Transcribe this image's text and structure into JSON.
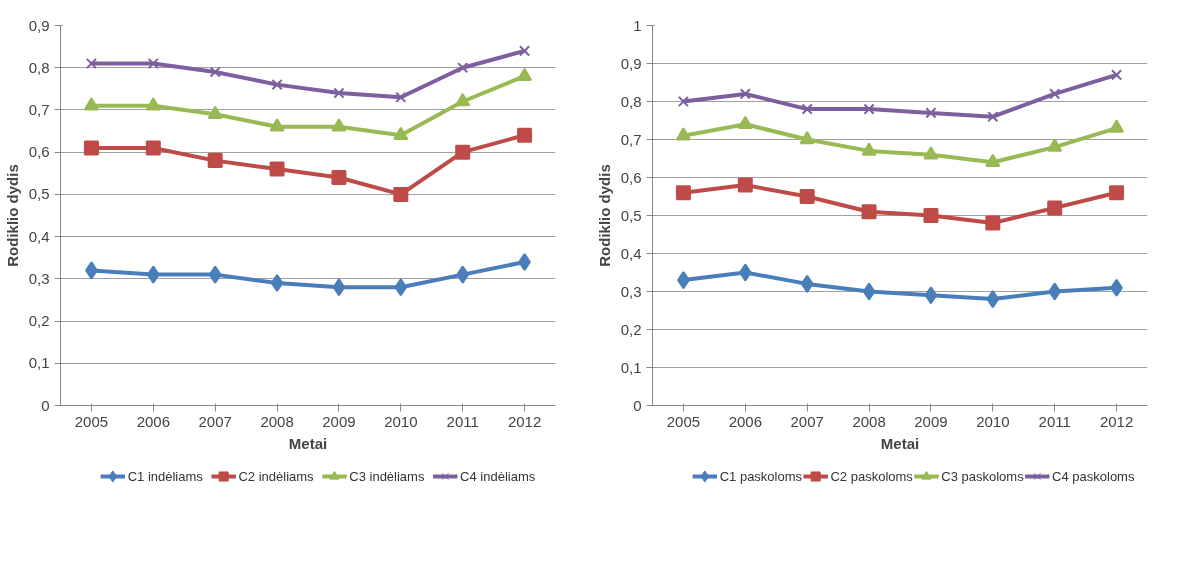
{
  "chart_data": [
    {
      "type": "line",
      "xlabel": "Metai",
      "ylabel": "Rodiklio dydis",
      "categories": [
        "2005",
        "2006",
        "2007",
        "2008",
        "2009",
        "2010",
        "2011",
        "2012"
      ],
      "ylim": [
        0,
        0.9
      ],
      "yticks": [
        {
          "value": 0,
          "label": "0"
        },
        {
          "value": 0.1,
          "label": "0,1"
        },
        {
          "value": 0.2,
          "label": "0,2"
        },
        {
          "value": 0.3,
          "label": "0,3"
        },
        {
          "value": 0.4,
          "label": "0,4"
        },
        {
          "value": 0.5,
          "label": "0,5"
        },
        {
          "value": 0.6,
          "label": "0,6"
        },
        {
          "value": 0.7,
          "label": "0,7"
        },
        {
          "value": 0.8,
          "label": "0,8"
        },
        {
          "value": 0.9,
          "label": "0,9"
        }
      ],
      "grid": "y",
      "legend": "bottom",
      "line_style": "solid",
      "series": [
        {
          "name": "C1 indėliams",
          "color": "#4a7ebb",
          "marker": "diamond",
          "values": [
            0.32,
            0.31,
            0.31,
            0.29,
            0.28,
            0.28,
            0.31,
            0.34
          ]
        },
        {
          "name": "C2 indėliams",
          "color": "#be4b48",
          "marker": "square",
          "values": [
            0.61,
            0.61,
            0.58,
            0.56,
            0.54,
            0.5,
            0.6,
            0.64
          ]
        },
        {
          "name": "C3 indėliams",
          "color": "#98b954",
          "marker": "triangle",
          "values": [
            0.71,
            0.71,
            0.69,
            0.66,
            0.66,
            0.64,
            0.72,
            0.78
          ]
        },
        {
          "name": "C4 indėliams",
          "color": "#7d5fa0",
          "marker": "cross",
          "values": [
            0.81,
            0.81,
            0.79,
            0.76,
            0.74,
            0.73,
            0.8,
            0.84
          ]
        }
      ]
    },
    {
      "type": "line",
      "xlabel": "Metai",
      "ylabel": "Rodiklio dydis",
      "categories": [
        "2005",
        "2006",
        "2007",
        "2008",
        "2009",
        "2010",
        "2011",
        "2012"
      ],
      "ylim": [
        0,
        1
      ],
      "yticks": [
        0,
        {
          "value": 0.1,
          "label": "0,1"
        },
        {
          "value": 0.2,
          "label": "0,2"
        },
        {
          "value": 0.3,
          "label": "0,3"
        },
        {
          "value": 0.4,
          "label": "0,4"
        },
        {
          "value": 0.5,
          "label": "0,5"
        },
        {
          "value": 0.6,
          "label": "0,6"
        },
        {
          "value": 0.7,
          "label": "0,7"
        },
        {
          "value": 0.8,
          "label": "0,8"
        },
        {
          "value": 0.9,
          "label": "0,9"
        },
        1
      ],
      "grid": "y",
      "legend": "bottom",
      "line_style": "solid",
      "series": [
        {
          "name": "C1 paskoloms",
          "color": "#4a7ebb",
          "marker": "diamond",
          "values": [
            0.33,
            0.35,
            0.32,
            0.3,
            0.29,
            0.28,
            0.3,
            0.31
          ]
        },
        {
          "name": "C2 paskoloms",
          "color": "#be4b48",
          "marker": "square",
          "values": [
            0.56,
            0.58,
            0.55,
            0.51,
            0.5,
            0.48,
            0.52,
            0.56
          ]
        },
        {
          "name": "C3 paskoloms",
          "color": "#98b954",
          "marker": "triangle",
          "values": [
            0.71,
            0.74,
            0.7,
            0.67,
            0.66,
            0.64,
            0.68,
            0.73
          ]
        },
        {
          "name": "C4 paskoloms",
          "color": "#7d5fa0",
          "marker": "cross",
          "values": [
            0.8,
            0.82,
            0.78,
            0.78,
            0.77,
            0.76,
            0.82,
            0.87
          ]
        }
      ]
    }
  ]
}
